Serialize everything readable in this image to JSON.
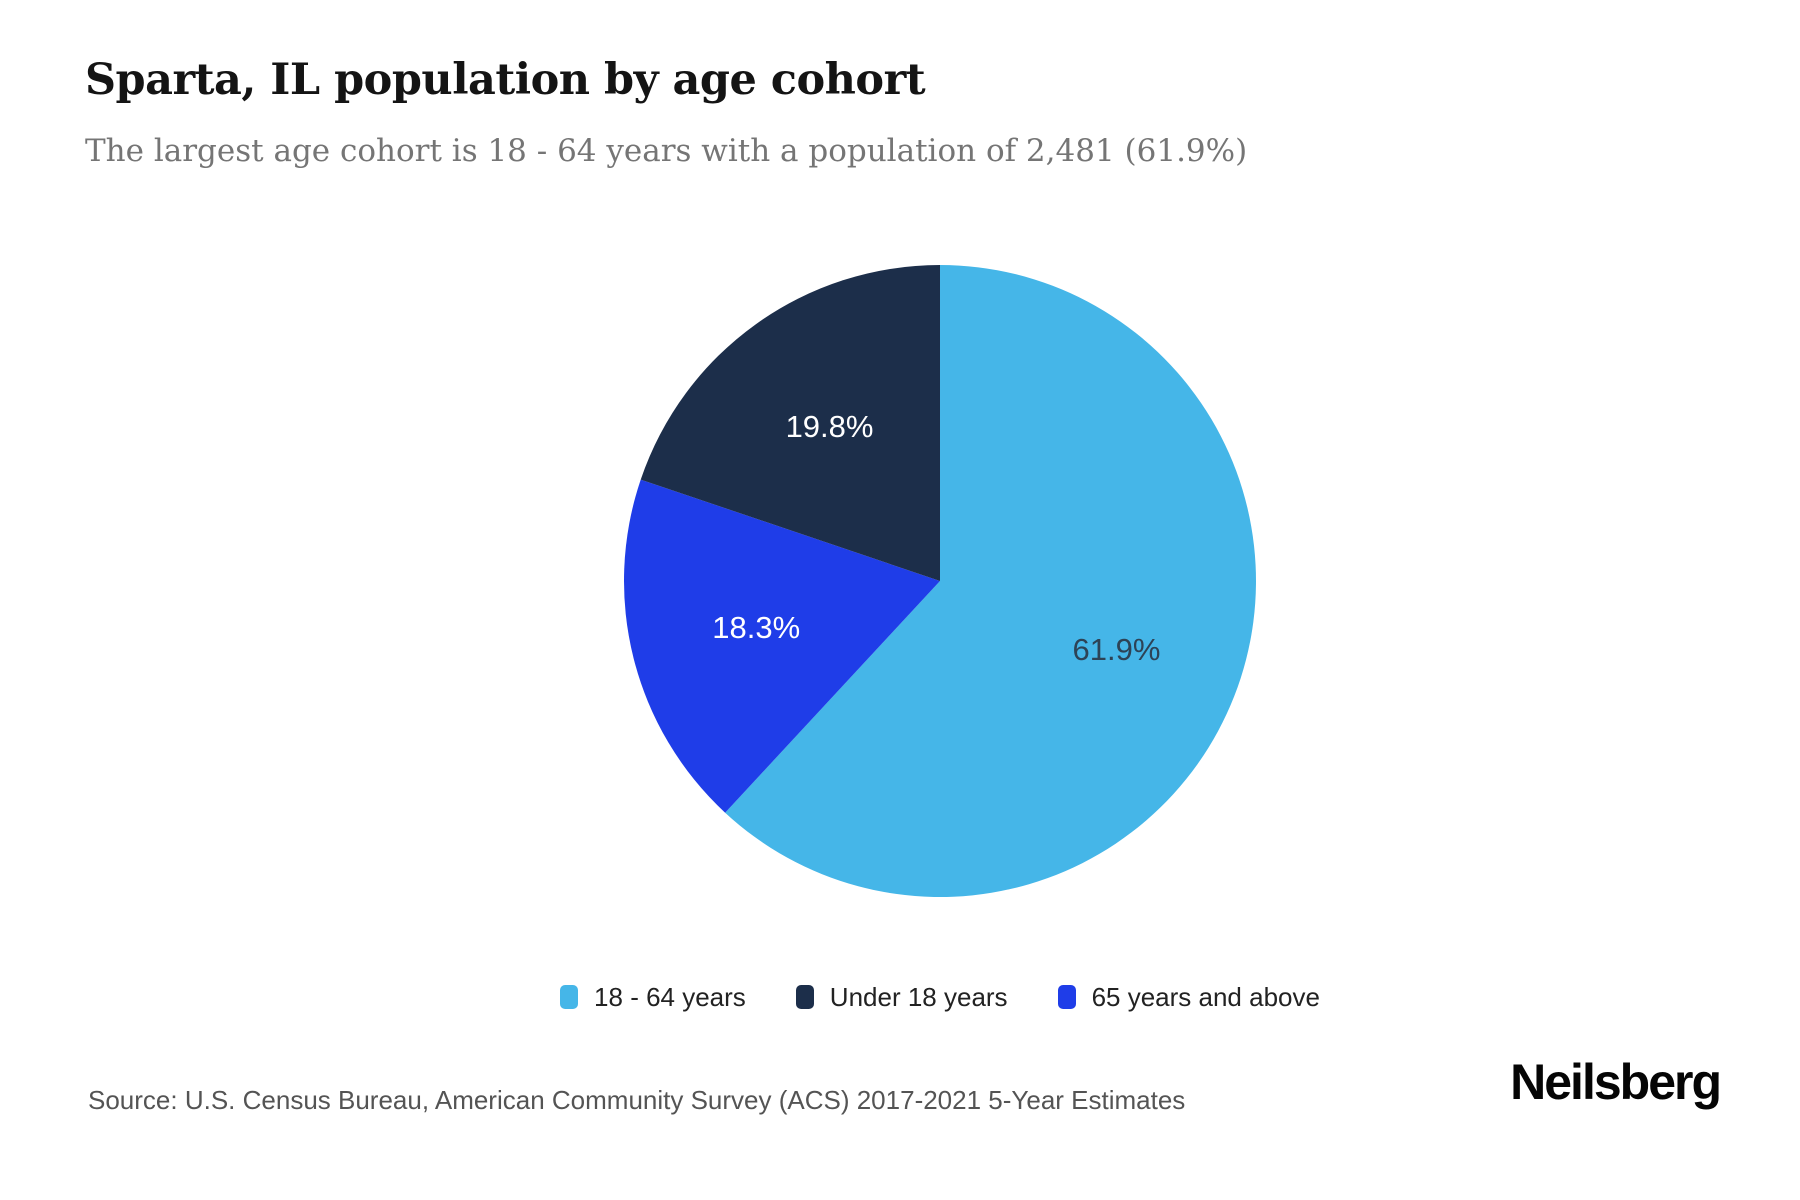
{
  "header": {
    "title": "Sparta, IL population by age cohort",
    "subtitle": "The largest age cohort is 18 - 64 years with a population of 2,481 (61.9%)"
  },
  "chart_data": {
    "type": "pie",
    "title": "Sparta, IL population by age cohort",
    "start_angle_deg": 0,
    "direction": "clockwise",
    "slices": [
      {
        "label": "18 - 64 years",
        "value_pct": 61.9,
        "population": 2481,
        "display_label": "61.9%",
        "color": "#45b6e8",
        "label_color": "#2d4356"
      },
      {
        "label": "65 years and above",
        "value_pct": 18.3,
        "display_label": "18.3%",
        "color": "#1f3de8",
        "label_color": "#ffffff"
      },
      {
        "label": "Under 18 years",
        "value_pct": 19.8,
        "display_label": "19.8%",
        "color": "#1c2e4a",
        "label_color": "#ffffff"
      }
    ],
    "legend": [
      {
        "label": "18 - 64 years",
        "color": "#45b6e8"
      },
      {
        "label": "Under 18 years",
        "color": "#1c2e4a"
      },
      {
        "label": "65 years and above",
        "color": "#1f3de8"
      }
    ],
    "legend_position": "bottom"
  },
  "footer": {
    "source": "Source: U.S. Census Bureau, American Community Survey (ACS) 2017-2021 5-Year Estimates",
    "brand": "Neilsberg"
  }
}
